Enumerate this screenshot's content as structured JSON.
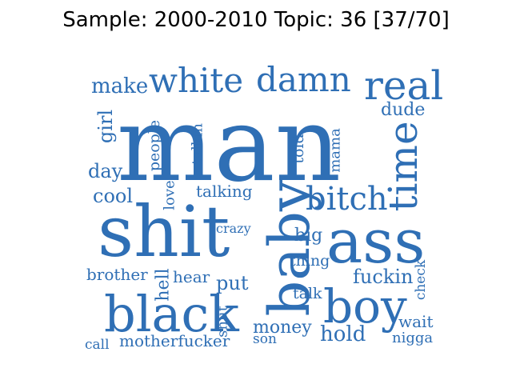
{
  "title": "Sample: 2000-2010 Topic: 36 [37/70]",
  "word_color": "#2f6fb5",
  "words": [
    {
      "key": "man",
      "text": "man"
    },
    {
      "key": "shit",
      "text": "shit"
    },
    {
      "key": "ass",
      "text": "ass"
    },
    {
      "key": "baby",
      "text": "baby"
    },
    {
      "key": "black",
      "text": "black"
    },
    {
      "key": "boy",
      "text": "boy"
    },
    {
      "key": "real",
      "text": "real"
    },
    {
      "key": "white",
      "text": "white"
    },
    {
      "key": "damn",
      "text": "damn"
    },
    {
      "key": "time",
      "text": "time"
    },
    {
      "key": "bitch",
      "text": "bitch"
    },
    {
      "key": "make",
      "text": "make"
    },
    {
      "key": "dude",
      "text": "dude"
    },
    {
      "key": "girl",
      "text": "girl"
    },
    {
      "key": "people",
      "text": "people"
    },
    {
      "key": "talkin",
      "text": "talkin"
    },
    {
      "key": "told",
      "text": "told"
    },
    {
      "key": "mama",
      "text": "mama"
    },
    {
      "key": "day",
      "text": "day"
    },
    {
      "key": "cool",
      "text": "cool"
    },
    {
      "key": "love",
      "text": "love"
    },
    {
      "key": "talking",
      "text": "talking"
    },
    {
      "key": "crazy",
      "text": "crazy"
    },
    {
      "key": "big",
      "text": "big"
    },
    {
      "key": "thing",
      "text": "thing"
    },
    {
      "key": "brother",
      "text": "brother"
    },
    {
      "key": "hell",
      "text": "hell"
    },
    {
      "key": "hear",
      "text": "hear"
    },
    {
      "key": "put",
      "text": "put"
    },
    {
      "key": "fuckin",
      "text": "fuckin"
    },
    {
      "key": "check",
      "text": "check"
    },
    {
      "key": "talk",
      "text": "talk"
    },
    {
      "key": "shut",
      "text": "shut"
    },
    {
      "key": "money",
      "text": "money"
    },
    {
      "key": "hold",
      "text": "hold"
    },
    {
      "key": "wait",
      "text": "wait"
    },
    {
      "key": "call",
      "text": "call"
    },
    {
      "key": "motherfucker",
      "text": "motherfucker"
    },
    {
      "key": "son",
      "text": "son"
    },
    {
      "key": "nigga",
      "text": "nigga"
    }
  ]
}
